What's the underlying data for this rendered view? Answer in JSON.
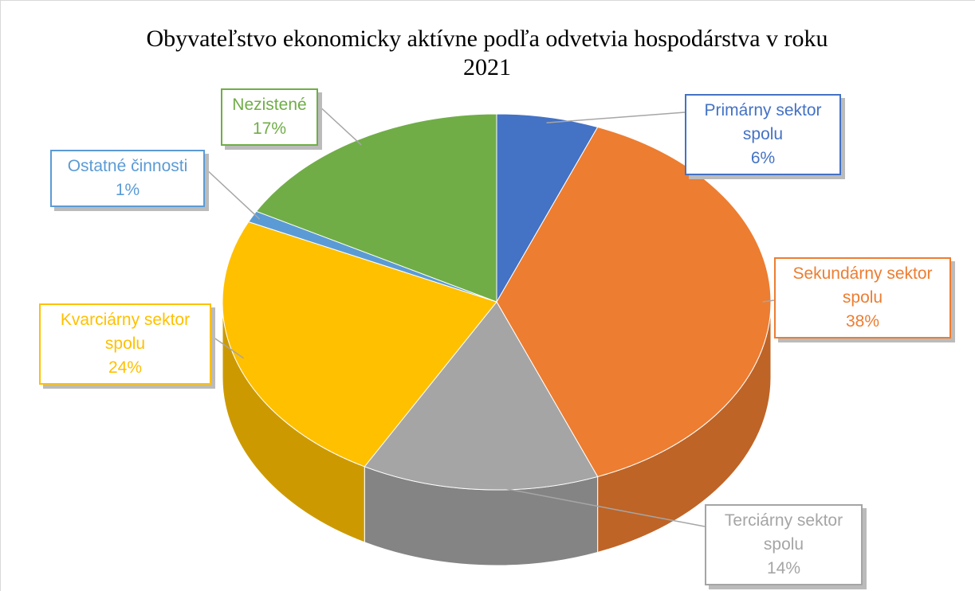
{
  "chart_data": {
    "type": "pie",
    "title": "Obyvateľstvo ekonomicky aktívne podľa odvetvia hospodárstva v roku 2021",
    "categories": [
      "Primárny sektor spolu",
      "Sekundárny sektor spolu",
      "Terciárny sektor spolu",
      "Kvarciárny sektor spolu",
      "Ostatné činnosti",
      "Nezistené"
    ],
    "values": [
      6,
      38,
      14,
      24,
      1,
      17
    ],
    "value_labels": [
      "6%",
      "38%",
      "14%",
      "24%",
      "1%",
      "17%"
    ],
    "colors": [
      "#4472c4",
      "#ed7d31",
      "#a5a5a5",
      "#ffc000",
      "#5b9bd5",
      "#70ad47"
    ],
    "three_d": true
  }
}
